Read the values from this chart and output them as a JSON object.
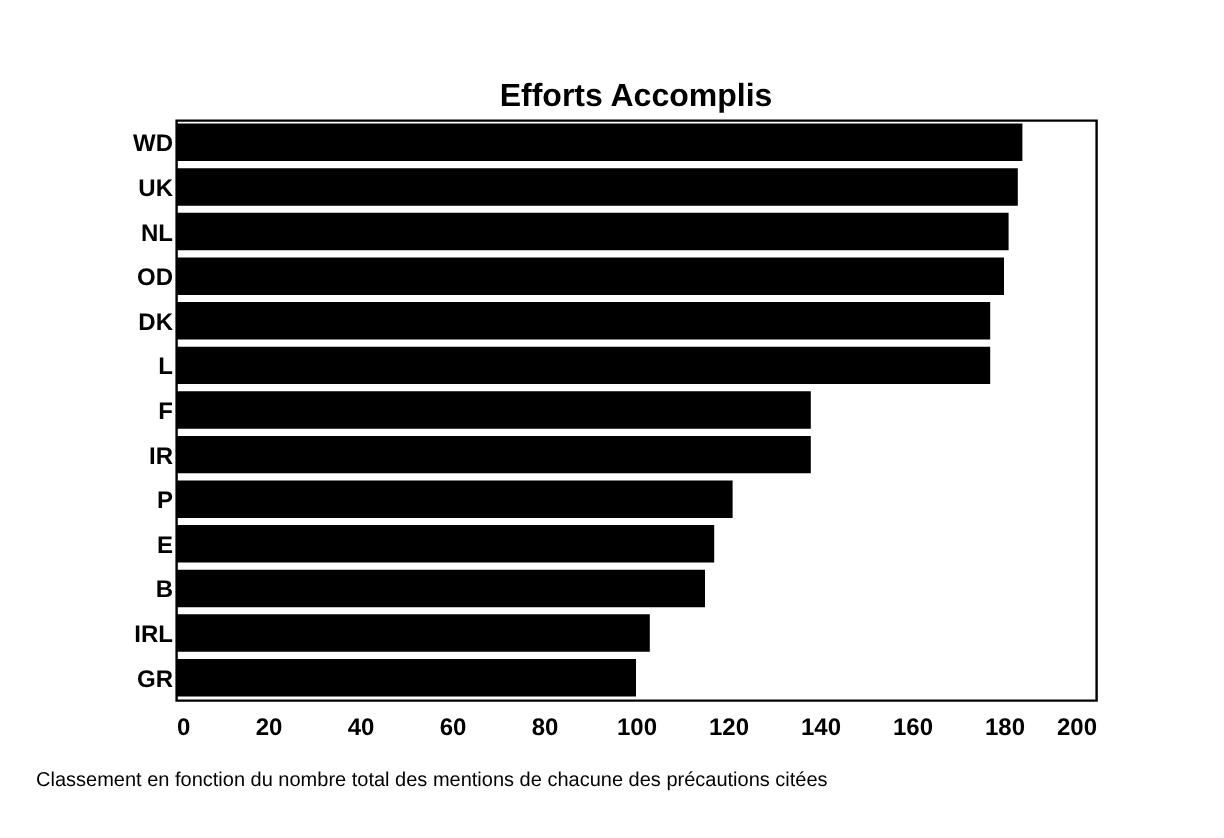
{
  "chart_data": {
    "type": "bar",
    "orientation": "horizontal",
    "title": "Efforts Accomplis",
    "categories": [
      "WD",
      "UK",
      "NL",
      "OD",
      "DK",
      "L",
      "F",
      "IR",
      "P",
      "E",
      "B",
      "IRL",
      "GR"
    ],
    "values": [
      184,
      183,
      181,
      180,
      177,
      177,
      138,
      138,
      121,
      117,
      115,
      103,
      100
    ],
    "color": "#000000",
    "xlim": [
      0,
      200
    ],
    "xticks": [
      0,
      20,
      40,
      60,
      80,
      100,
      120,
      140,
      160,
      180,
      200
    ],
    "grid": false,
    "annotations": [
      "Classement en fonction du nombre total des mentions de chacune des précautions citées"
    ]
  }
}
